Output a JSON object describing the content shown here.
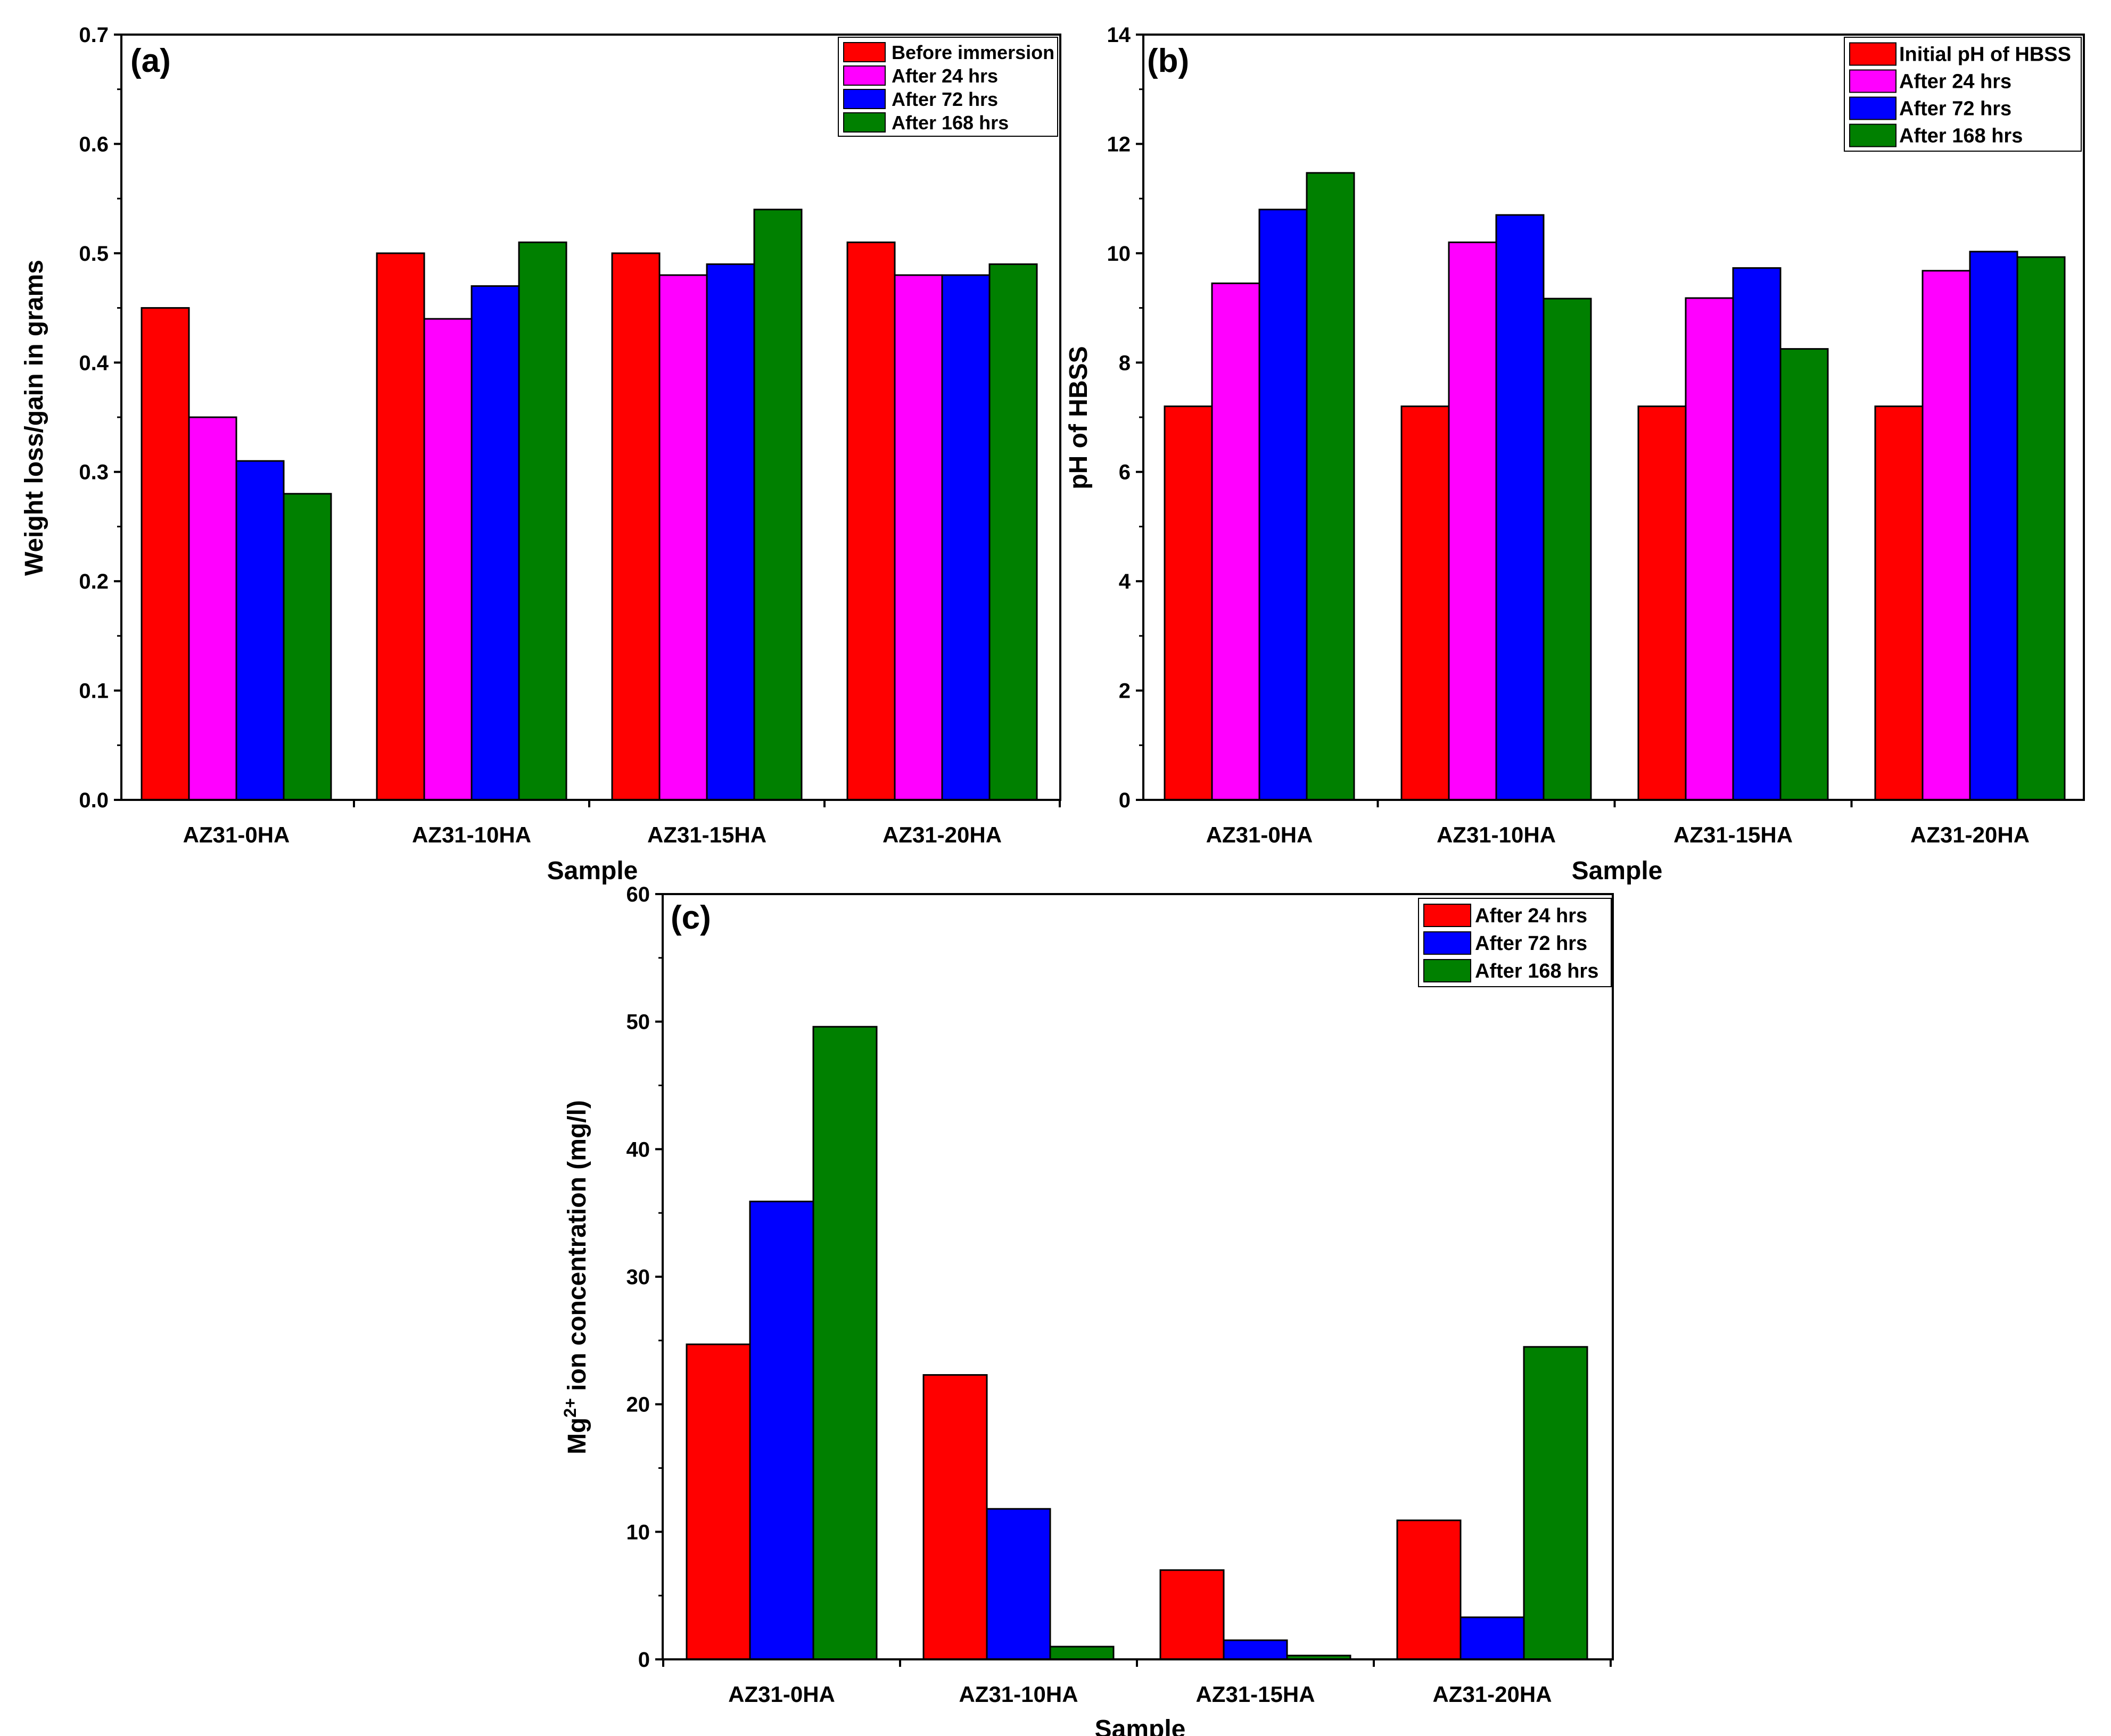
{
  "chart_data": [
    {
      "type": "bar",
      "panel_label": "(a)",
      "xlabel": "Sample",
      "ylabel": "Weight loss/gain in grams",
      "ylim": [
        0,
        0.7
      ],
      "yticks": [
        "0.0",
        "0.1",
        "0.2",
        "0.3",
        "0.4",
        "0.5",
        "0.6",
        "0.7"
      ],
      "categories": [
        "AZ31-0HA",
        "AZ31-10HA",
        "AZ31-15HA",
        "AZ31-20HA"
      ],
      "legend_position": "top-right",
      "series": [
        {
          "name": "Before immersion",
          "color": "#ff0000",
          "values": [
            0.45,
            0.5,
            0.5,
            0.51
          ]
        },
        {
          "name": "After 24 hrs",
          "color": "#ff00ff",
          "values": [
            0.35,
            0.44,
            0.48,
            0.48
          ]
        },
        {
          "name": "After 72 hrs",
          "color": "#0000ff",
          "values": [
            0.31,
            0.47,
            0.49,
            0.48
          ]
        },
        {
          "name": "After 168 hrs",
          "color": "#008000",
          "values": [
            0.28,
            0.51,
            0.54,
            0.49
          ]
        }
      ]
    },
    {
      "type": "bar",
      "panel_label": "(b)",
      "xlabel": "Sample",
      "ylabel": "pH of HBSS",
      "ylim": [
        0,
        14
      ],
      "yticks": [
        "0",
        "2",
        "4",
        "6",
        "8",
        "10",
        "12",
        "14"
      ],
      "categories": [
        "AZ31-0HA",
        "AZ31-10HA",
        "AZ31-15HA",
        "AZ31-20HA"
      ],
      "legend_position": "top-right",
      "series": [
        {
          "name": "Initial pH of HBSS",
          "color": "#ff0000",
          "values": [
            7.2,
            7.2,
            7.2,
            7.2
          ]
        },
        {
          "name": "After 24 hrs",
          "color": "#ff00ff",
          "values": [
            9.45,
            10.2,
            9.18,
            9.68
          ]
        },
        {
          "name": "After 72 hrs",
          "color": "#0000ff",
          "values": [
            10.8,
            10.7,
            9.73,
            10.03
          ]
        },
        {
          "name": "After 168 hrs",
          "color": "#008000",
          "values": [
            11.47,
            9.17,
            8.25,
            9.93
          ]
        }
      ]
    },
    {
      "type": "bar",
      "panel_label": "(c)",
      "xlabel": "Sample",
      "ylabel_main": "Mg",
      "ylabel_sup": "2+",
      "ylabel_rest": " ion concentration (mg/l)",
      "ylim": [
        0,
        60
      ],
      "yticks": [
        "0",
        "10",
        "20",
        "30",
        "40",
        "50",
        "60"
      ],
      "categories": [
        "AZ31-0HA",
        "AZ31-10HA",
        "AZ31-15HA",
        "AZ31-20HA"
      ],
      "legend_position": "top-right",
      "series": [
        {
          "name": "After 24 hrs",
          "color": "#ff0000",
          "values": [
            24.7,
            22.3,
            7.0,
            10.9
          ]
        },
        {
          "name": "After 72 hrs",
          "color": "#0000ff",
          "values": [
            35.9,
            11.8,
            1.5,
            3.3
          ]
        },
        {
          "name": "After 168 hrs",
          "color": "#008000",
          "values": [
            49.6,
            1.0,
            0.3,
            24.5
          ]
        }
      ]
    }
  ]
}
